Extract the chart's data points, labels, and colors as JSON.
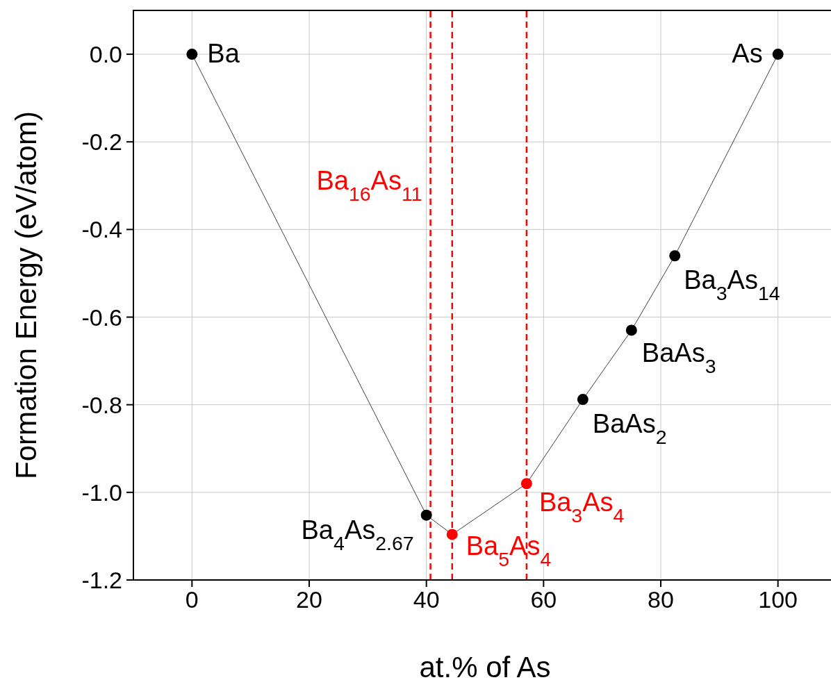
{
  "chart_data": {
    "type": "line",
    "xlabel": "at.% of As",
    "ylabel": "Formation Energy (eV/atom)",
    "x": [
      0,
      40,
      44.4,
      57.1,
      66.7,
      75,
      82.4,
      100
    ],
    "series": [
      {
        "color": "#404040",
        "values": [
          0,
          -1.052,
          -1.096,
          -0.98,
          -0.788,
          -0.63,
          -0.46,
          0
        ],
        "colors": [
          "#000000",
          "#000000",
          "#ff0000",
          "#ff0000",
          "#000000",
          "#000000",
          "#000000",
          "#000000"
        ]
      }
    ],
    "marker": "circle",
    "line_style": "solid",
    "grid": true,
    "legend": false,
    "xlim": [
      -10,
      110
    ],
    "xticks": [
      0,
      20,
      40,
      60,
      80,
      100
    ],
    "ylim": [
      -1.2,
      0.1
    ],
    "yticks": [
      {
        "value": -1.2,
        "label": "-1.2"
      },
      {
        "value": -1,
        "label": "-1.0"
      },
      {
        "value": -0.8,
        "label": "-0.8"
      },
      {
        "value": -0.6,
        "label": "-0.6"
      },
      {
        "value": -0.4,
        "label": "-0.4"
      },
      {
        "value": -0.2,
        "label": "-0.2"
      },
      {
        "value": 0,
        "label": "0.0"
      }
    ],
    "ref_lines": [
      {
        "axis": "x",
        "value": 40.7,
        "color": "#ff0000",
        "line_style": "dashed"
      },
      {
        "axis": "x",
        "value": 44.4,
        "color": "#ff0000",
        "line_style": "dashed"
      },
      {
        "axis": "x",
        "value": 57.1,
        "color": "#ff0000",
        "line_style": "dashed"
      }
    ],
    "annotations": [
      {
        "text": "Ba",
        "x": 0,
        "y": 0
      },
      {
        "text": "As",
        "x": 100,
        "y": 0
      },
      {
        "text": "Ba$_{16}$As$_{11}$",
        "x": 40.7,
        "y": -0.29
      },
      {
        "text": "Ba$_{4}$As$_{2.67}$",
        "x": 40,
        "y": -1.052
      },
      {
        "text": "Ba$_{5}$As$_{4}$",
        "x": 44.4,
        "y": -1.096
      },
      {
        "text": "Ba$_{3}$As$_{4}$",
        "x": 57.1,
        "y": -0.98
      },
      {
        "text": "BaAs$_{2}$",
        "x": 66.7,
        "y": -0.788
      },
      {
        "text": "BaAs$_{3}$",
        "x": 75,
        "y": -0.63
      },
      {
        "text": "Ba$_{3}$As$_{14}$",
        "x": 82.4,
        "y": -0.46
      }
    ]
  }
}
